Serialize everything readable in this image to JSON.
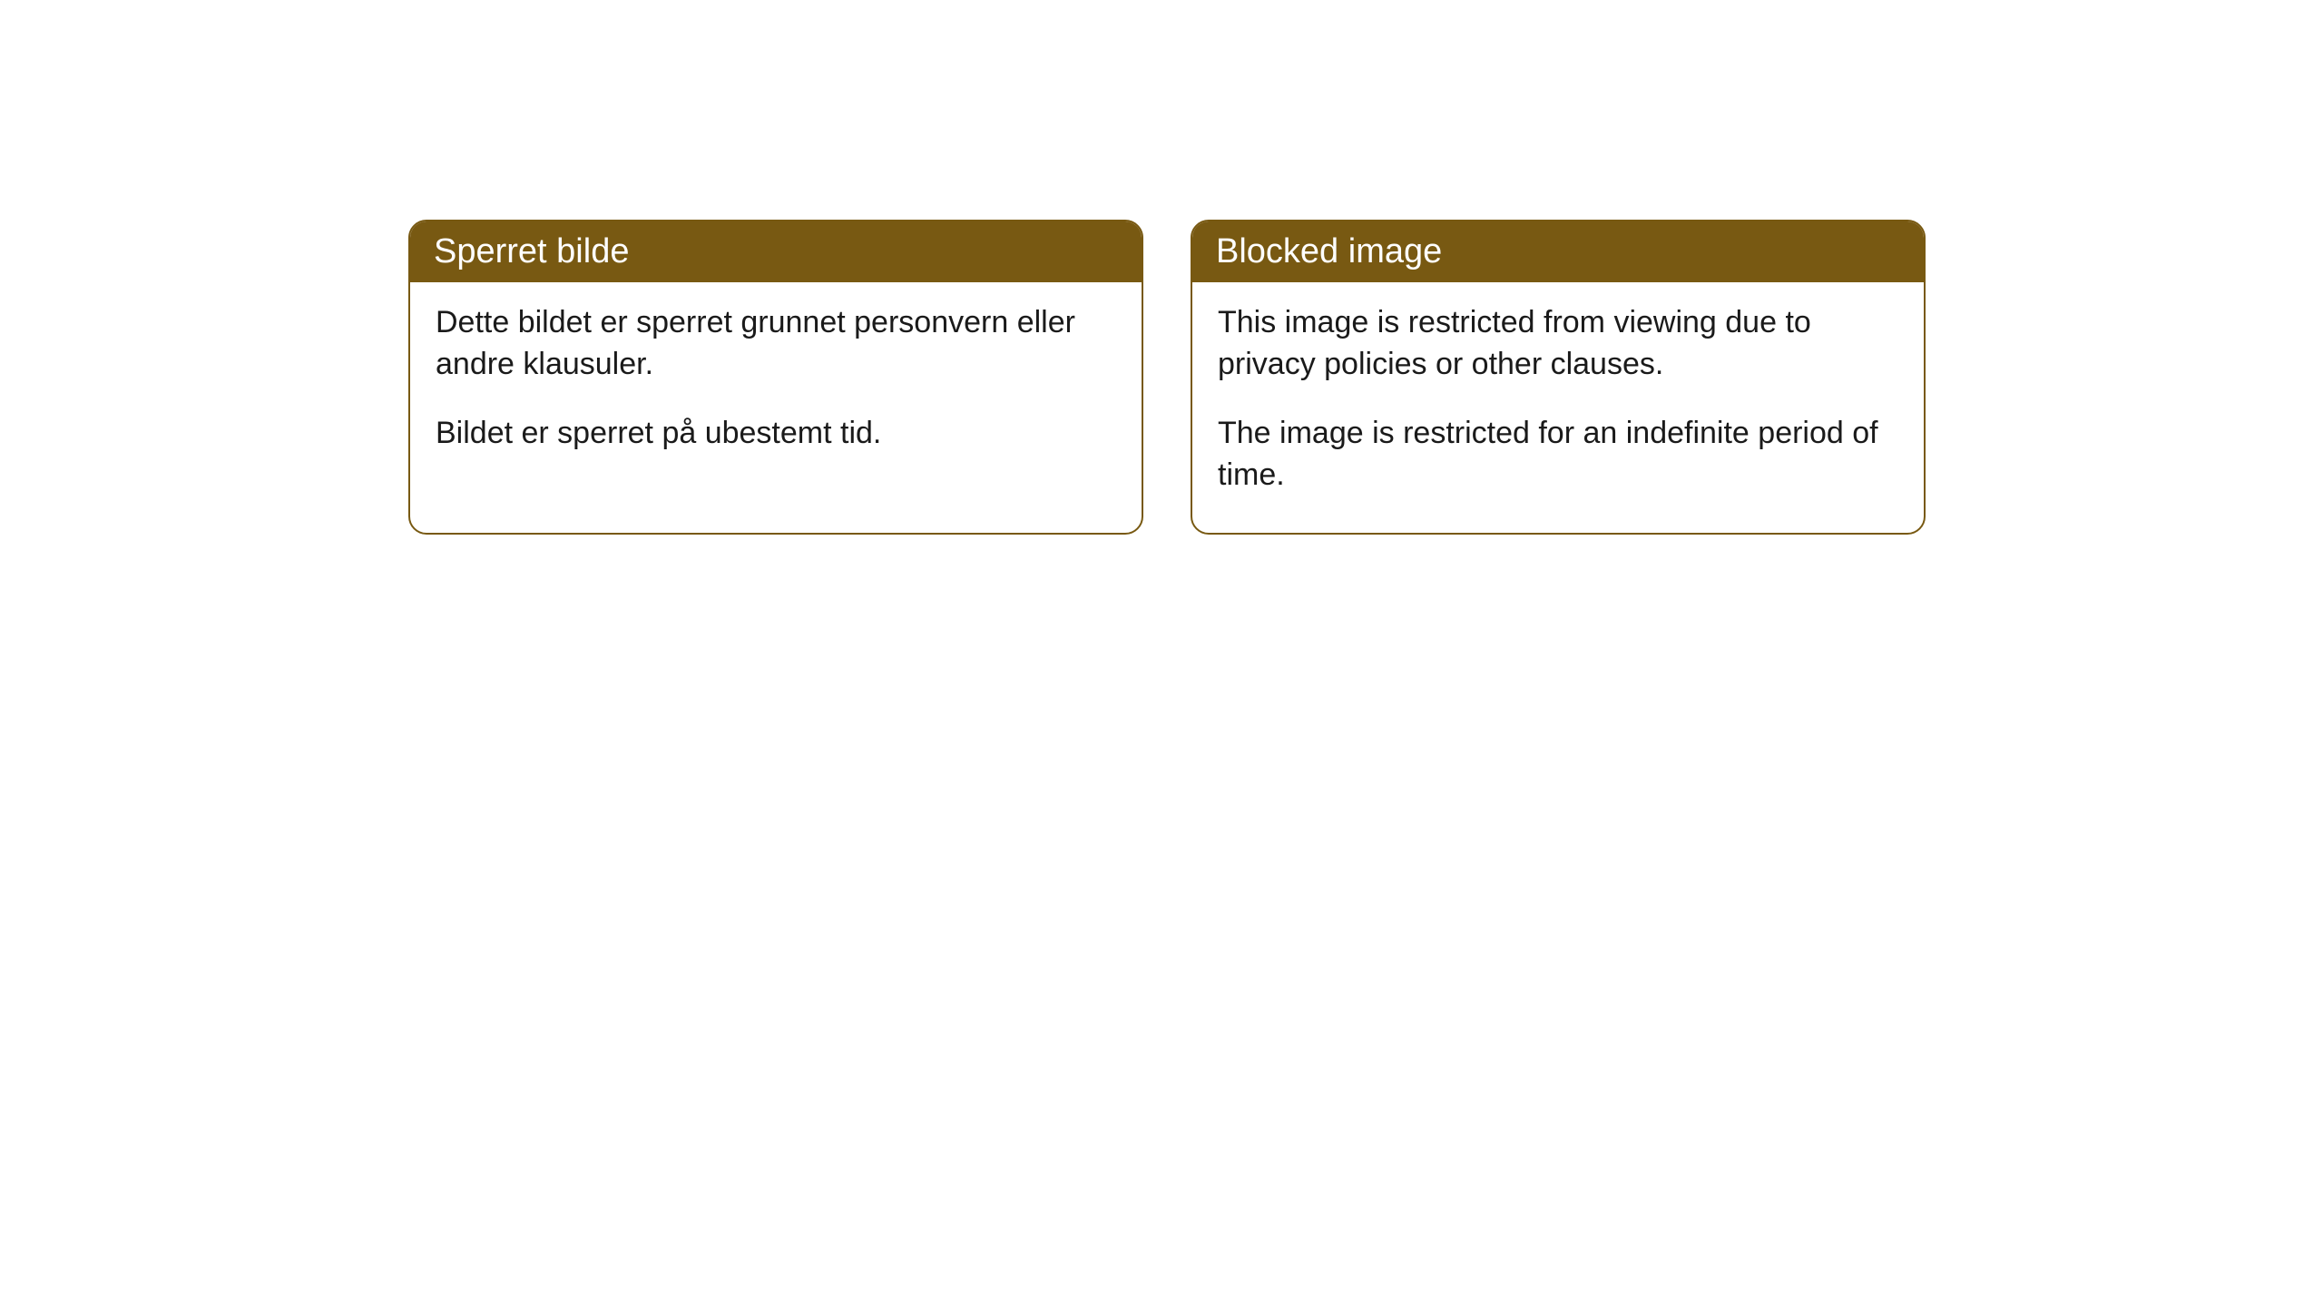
{
  "cards": [
    {
      "title": "Sperret bilde",
      "paragraph1": "Dette bildet er sperret grunnet personvern eller andre klausuler.",
      "paragraph2": "Bildet er sperret på ubestemt tid."
    },
    {
      "title": "Blocked image",
      "paragraph1": "This image is restricted from viewing due to privacy policies or other clauses.",
      "paragraph2": "The image is restricted for an indefinite period of time."
    }
  ],
  "style": {
    "header_bg_color": "#785912",
    "header_text_color": "#ffffff",
    "border_color": "#785912",
    "border_radius": "20px",
    "body_bg_color": "#ffffff",
    "body_text_color": "#1a1a1a",
    "title_fontsize": 38,
    "body_fontsize": 34
  }
}
